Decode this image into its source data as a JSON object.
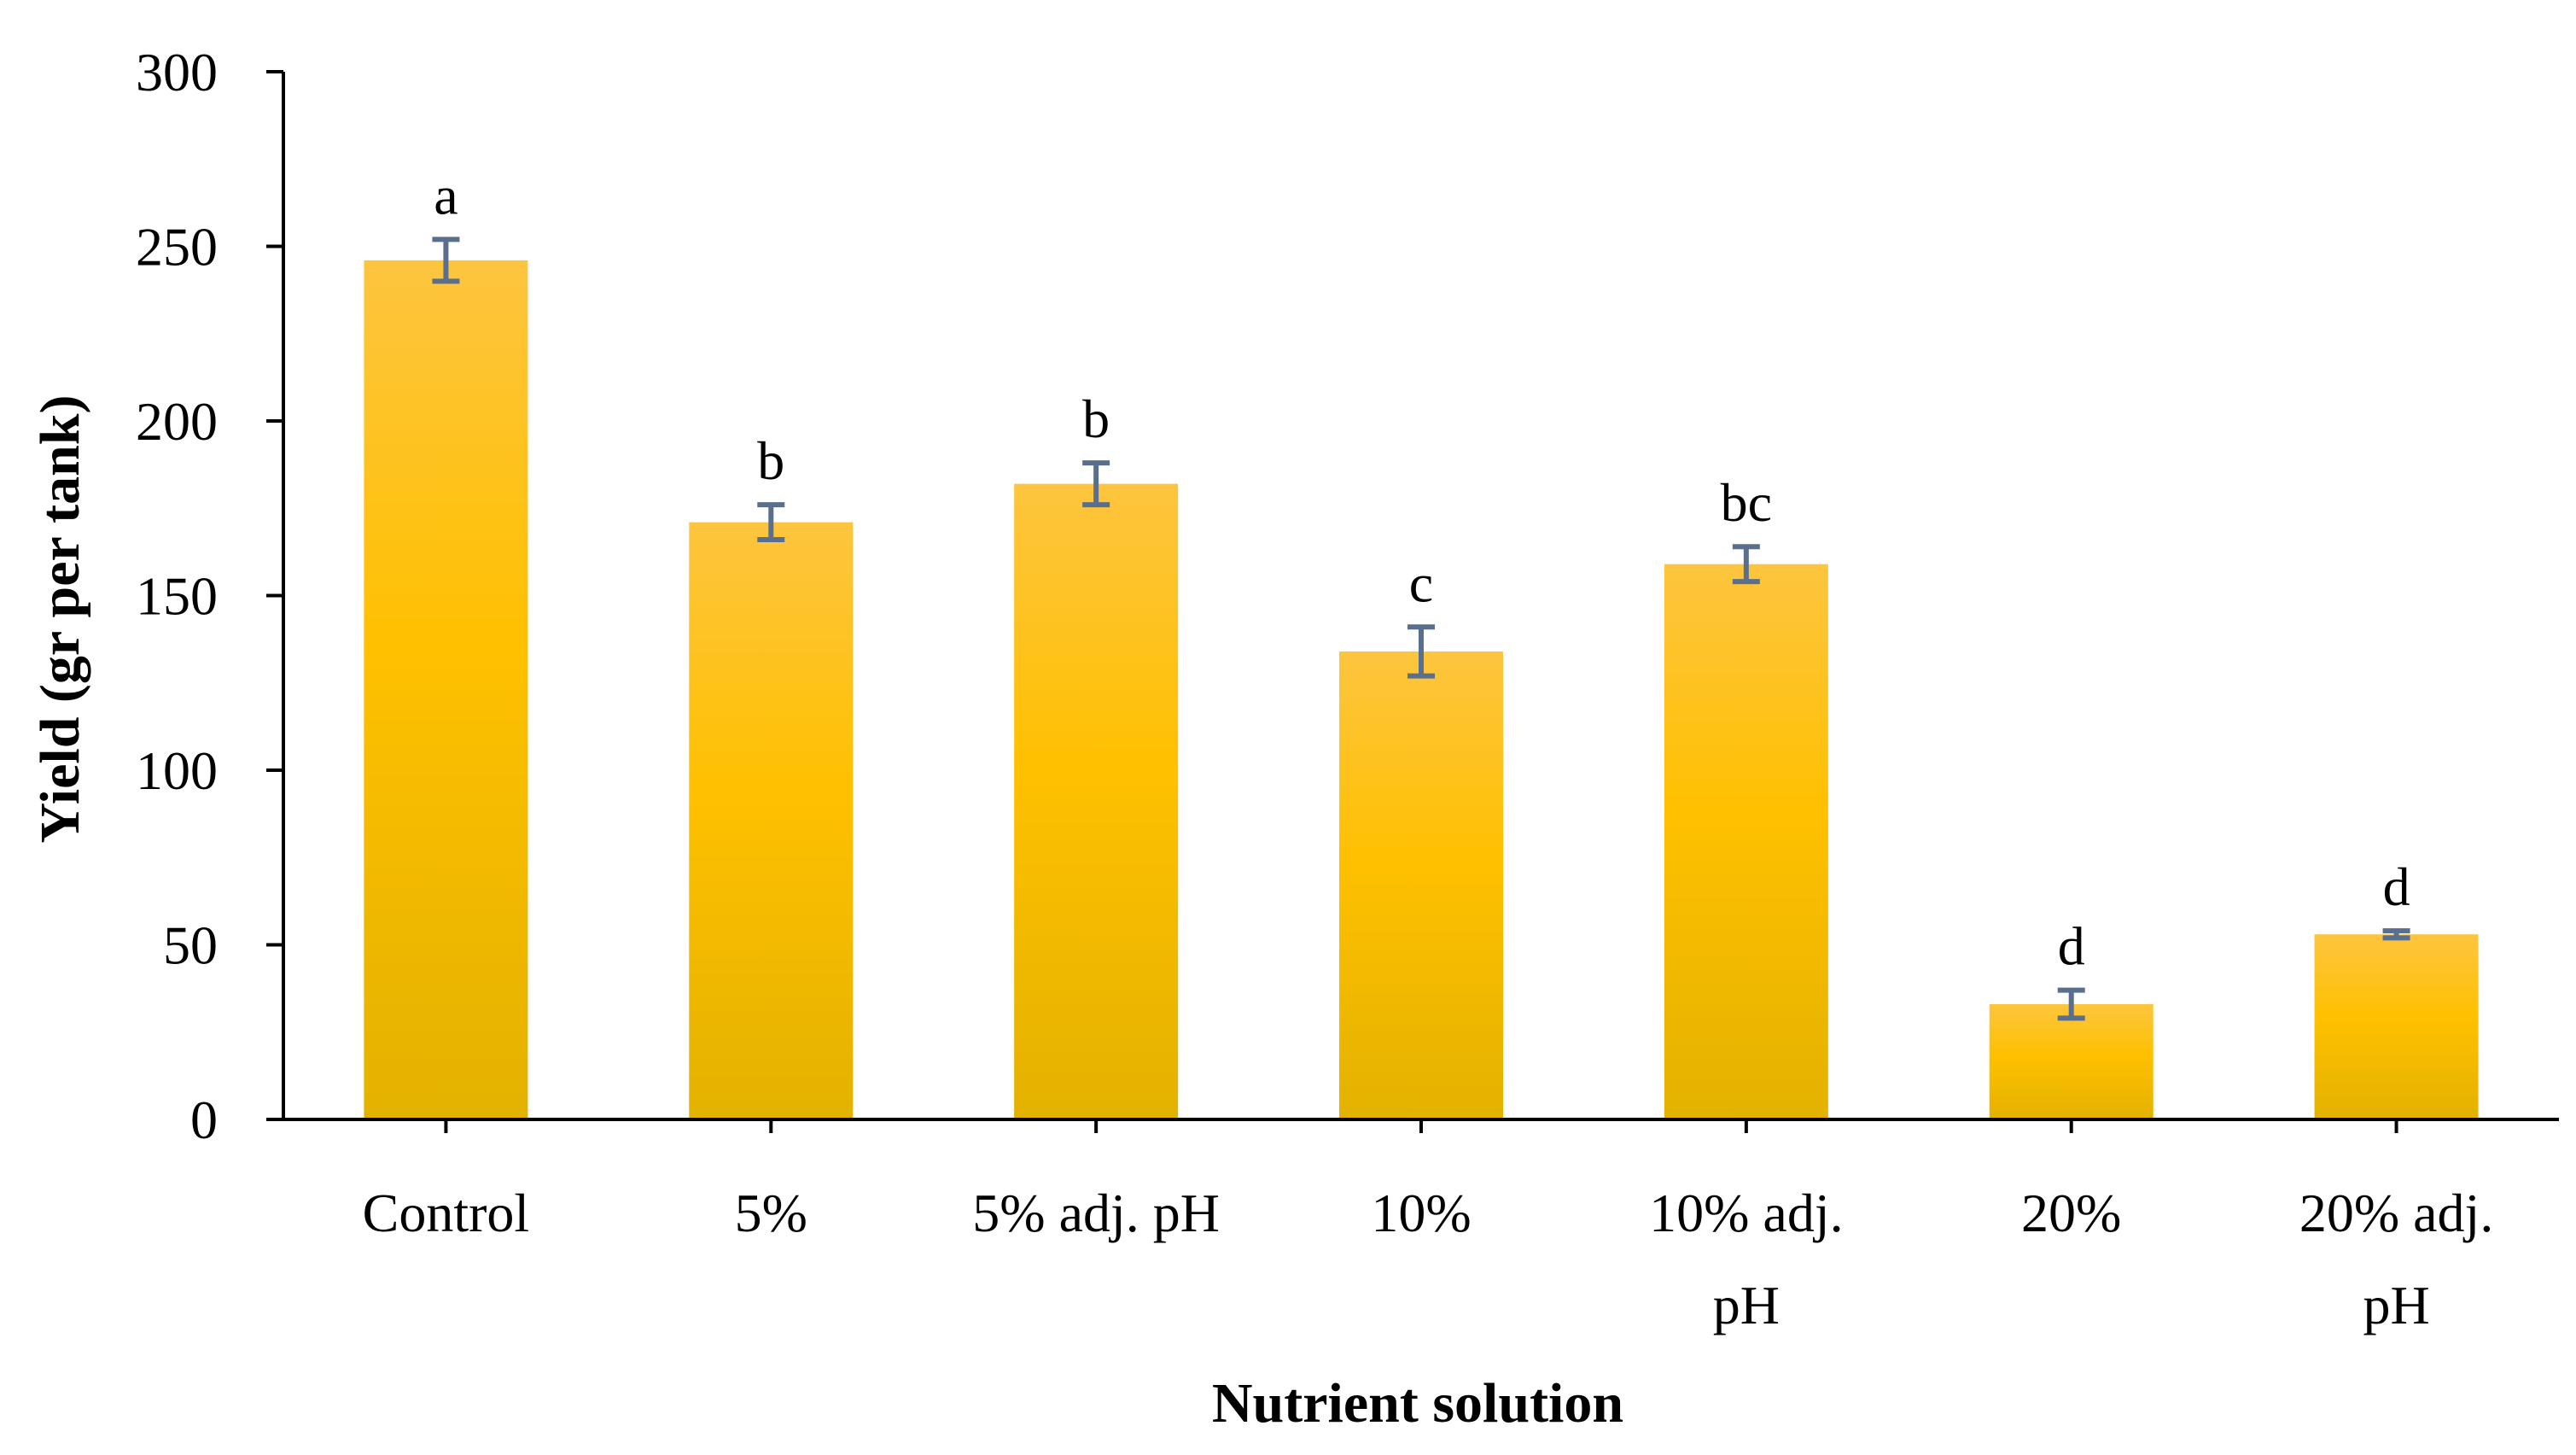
{
  "chart_data": {
    "type": "bar",
    "title": "",
    "xlabel": "Nutrient solution",
    "ylabel": "Yield (gr per tank)",
    "ylim": [
      0,
      300
    ],
    "yticks": [
      0,
      50,
      100,
      150,
      200,
      250,
      300
    ],
    "grid": false,
    "categories": [
      [
        "Control"
      ],
      [
        "5%"
      ],
      [
        "5% adj. pH"
      ],
      [
        "10%"
      ],
      [
        "10% adj.",
        "pH"
      ],
      [
        "20%"
      ],
      [
        "20% adj.",
        "pH"
      ]
    ],
    "values": [
      246,
      171,
      182,
      134,
      159,
      33,
      53
    ],
    "errors": [
      6,
      5,
      6,
      7,
      5,
      4,
      1
    ],
    "significance_labels": [
      "a",
      "b",
      "b",
      "c",
      "bc",
      "d",
      "d"
    ],
    "colors": {
      "bar_top": "#FDC53F",
      "bar_mid": "#FFC000",
      "bar_bottom": "#E3B200",
      "error_bar": "#5A6F8E",
      "axis": "#000000"
    }
  }
}
